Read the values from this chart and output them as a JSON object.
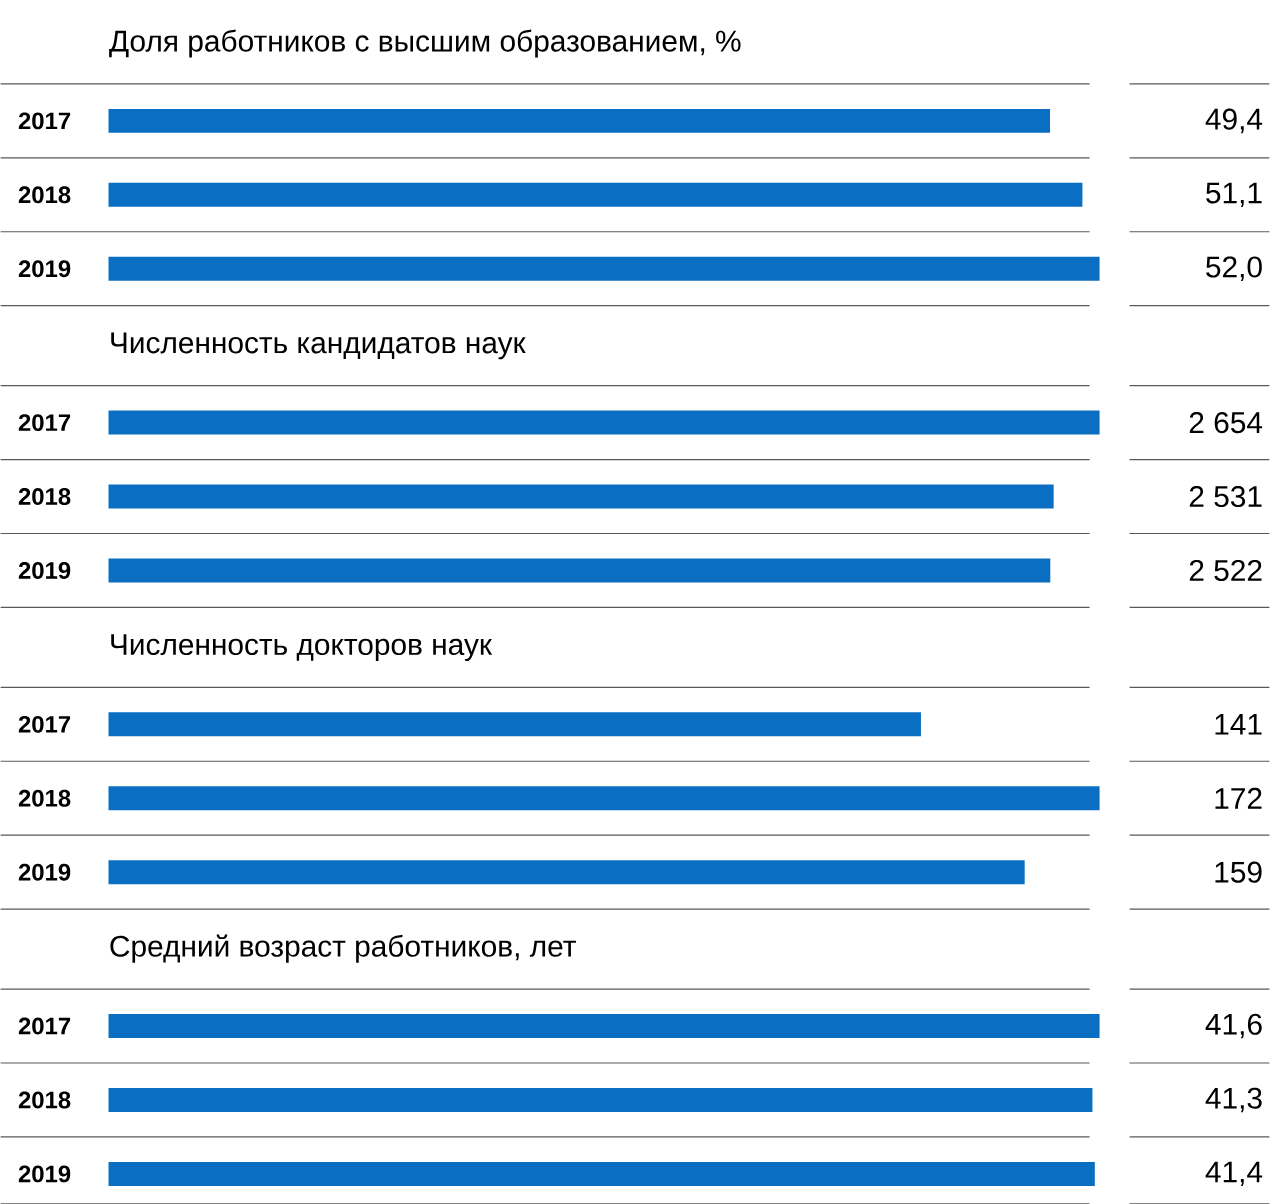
{
  "chart_data": [
    {
      "type": "bar",
      "orientation": "horizontal",
      "title": "Доля работников с высшим образованием, %",
      "categories": [
        "2017",
        "2018",
        "2019"
      ],
      "values": [
        49.4,
        51.1,
        52.0
      ],
      "value_labels": [
        "49,4",
        "51,1",
        "52,0"
      ],
      "color": "#0a6fc2"
    },
    {
      "type": "bar",
      "orientation": "horizontal",
      "title": "Численность кандидатов наук",
      "categories": [
        "2017",
        "2018",
        "2019"
      ],
      "values": [
        2654,
        2531,
        2522
      ],
      "value_labels": [
        "2 654",
        "2 531",
        "2 522"
      ],
      "color": "#0a6fc2"
    },
    {
      "type": "bar",
      "orientation": "horizontal",
      "title": "Численность докторов наук",
      "categories": [
        "2017",
        "2018",
        "2019"
      ],
      "values": [
        141,
        172,
        159
      ],
      "value_labels": [
        "141",
        "172",
        "159"
      ],
      "color": "#0a6fc2"
    },
    {
      "type": "bar",
      "orientation": "horizontal",
      "title": "Средний возраст работников, лет",
      "categories": [
        "2017",
        "2018",
        "2019"
      ],
      "values": [
        41.6,
        41.3,
        41.4
      ],
      "value_labels": [
        "41,6",
        "41,3",
        "41,4"
      ],
      "color": "#0a6fc2"
    }
  ]
}
